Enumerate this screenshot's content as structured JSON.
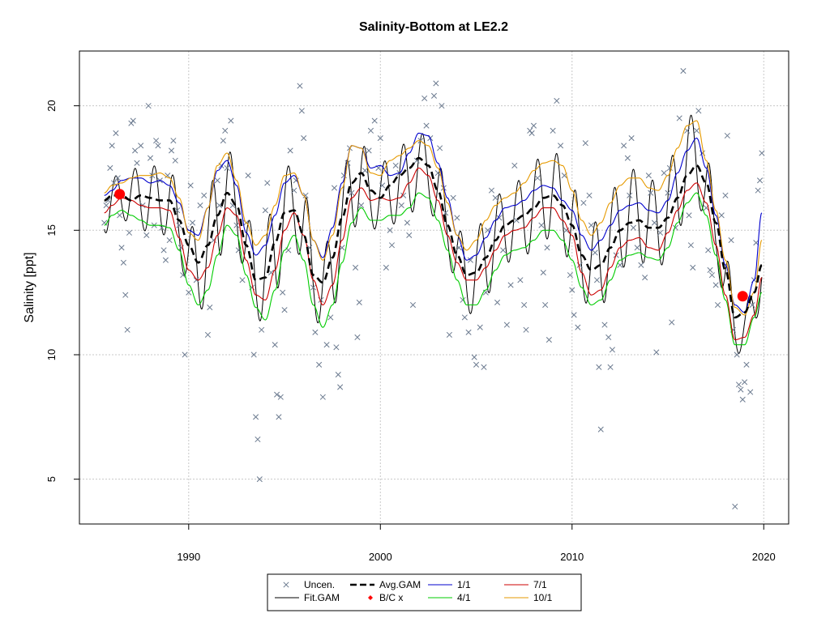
{
  "chart_data": {
    "type": "scatter",
    "title": "Salinity-Bottom at LE2.2",
    "xlabel": "",
    "ylabel": "Salinity [ppt]",
    "xlim": [
      1984.3,
      2021.3
    ],
    "ylim": [
      3.2,
      22.2
    ],
    "x_ticks": [
      1990,
      2000,
      2010,
      2020
    ],
    "x_tick_labels": [
      "1990",
      "2000",
      "2010",
      "2020"
    ],
    "y_ticks": [
      5,
      10,
      15,
      20
    ],
    "y_tick_labels": [
      "5",
      "10",
      "15",
      "20"
    ],
    "grid": true,
    "legend_position": "bottom",
    "legend": [
      {
        "label": "Uncen.",
        "style": "x-marker",
        "color": "#6b7a8f"
      },
      {
        "label": "Fit.GAM",
        "style": "line",
        "color": "#000000"
      },
      {
        "label": "Avg.GAM",
        "style": "dashed-line",
        "color": "#000000"
      },
      {
        "label": "B/C x",
        "style": "diamond-marker",
        "color": "#ff0000"
      },
      {
        "label": "1/1",
        "style": "line",
        "color": "#0000cd"
      },
      {
        "label": "4/1",
        "style": "line",
        "color": "#00cc00"
      },
      {
        "label": "7/1",
        "style": "line",
        "color": "#cc0000"
      },
      {
        "label": "10/1",
        "style": "line",
        "color": "#e69a00"
      }
    ],
    "observations": [
      [
        1985.6,
        15.3
      ],
      [
        1985.8,
        16.2
      ],
      [
        1985.9,
        17.5
      ],
      [
        1986.0,
        18.4
      ],
      [
        1986.1,
        16.9
      ],
      [
        1986.2,
        18.9
      ],
      [
        1986.3,
        17.1
      ],
      [
        1986.4,
        15.6
      ],
      [
        1986.5,
        14.3
      ],
      [
        1986.6,
        13.7
      ],
      [
        1986.7,
        12.4
      ],
      [
        1986.8,
        11.0
      ],
      [
        1986.9,
        14.9
      ],
      [
        1987.0,
        19.3
      ],
      [
        1987.1,
        19.4
      ],
      [
        1987.3,
        17.7
      ],
      [
        1987.5,
        18.4
      ],
      [
        1987.6,
        16.0
      ],
      [
        1987.8,
        14.8
      ],
      [
        1987.9,
        20.0
      ],
      [
        1988.0,
        17.9
      ],
      [
        1988.1,
        17.2
      ],
      [
        1988.2,
        15.2
      ],
      [
        1988.3,
        18.6
      ],
      [
        1988.4,
        18.4
      ],
      [
        1988.5,
        17.0
      ],
      [
        1988.6,
        15.1
      ],
      [
        1988.7,
        14.2
      ],
      [
        1988.8,
        13.8
      ],
      [
        1988.9,
        17.2
      ],
      [
        1989.1,
        18.2
      ],
      [
        1989.2,
        18.6
      ],
      [
        1989.3,
        17.8
      ],
      [
        1989.4,
        15.8
      ],
      [
        1989.5,
        15.2
      ],
      [
        1989.6,
        14.3
      ],
      [
        1989.7,
        13.2
      ],
      [
        1989.8,
        10.0
      ],
      [
        1990.0,
        12.5
      ],
      [
        1990.1,
        16.8
      ],
      [
        1990.2,
        15.3
      ],
      [
        1990.4,
        13.0
      ],
      [
        1990.6,
        16.0
      ],
      [
        1990.8,
        16.4
      ],
      [
        1991.0,
        10.8
      ],
      [
        1991.1,
        11.9
      ],
      [
        1991.3,
        14.6
      ],
      [
        1991.5,
        17.0
      ],
      [
        1991.6,
        16.0
      ],
      [
        1991.8,
        18.6
      ],
      [
        1991.9,
        19.0
      ],
      [
        1992.0,
        17.5
      ],
      [
        1992.2,
        19.4
      ],
      [
        1992.3,
        16.0
      ],
      [
        1992.5,
        15.2
      ],
      [
        1992.6,
        14.2
      ],
      [
        1992.8,
        13.0
      ],
      [
        1993.0,
        15.3
      ],
      [
        1993.1,
        17.2
      ],
      [
        1993.3,
        12.7
      ],
      [
        1993.4,
        10.0
      ],
      [
        1993.5,
        7.5
      ],
      [
        1993.6,
        6.6
      ],
      [
        1993.7,
        5.0
      ],
      [
        1993.8,
        11.0
      ],
      [
        1994.0,
        15.8
      ],
      [
        1994.1,
        16.9
      ],
      [
        1994.3,
        13.3
      ],
      [
        1994.5,
        10.4
      ],
      [
        1994.6,
        8.4
      ],
      [
        1994.7,
        7.5
      ],
      [
        1994.8,
        8.3
      ],
      [
        1995.0,
        11.8
      ],
      [
        1995.2,
        14.2
      ],
      [
        1995.3,
        18.2
      ],
      [
        1995.5,
        16.6
      ],
      [
        1995.6,
        17.0
      ],
      [
        1995.8,
        20.8
      ],
      [
        1995.9,
        19.8
      ],
      [
        1996.0,
        18.7
      ],
      [
        1996.1,
        16.4
      ],
      [
        1996.3,
        14.3
      ],
      [
        1996.5,
        12.7
      ],
      [
        1996.6,
        10.9
      ],
      [
        1996.8,
        9.6
      ],
      [
        1997.0,
        8.3
      ],
      [
        1997.2,
        10.4
      ],
      [
        1997.4,
        11.5
      ],
      [
        1997.6,
        16.7
      ],
      [
        1997.7,
        10.3
      ],
      [
        1997.8,
        9.2
      ],
      [
        1997.9,
        8.7
      ],
      [
        1998.0,
        14.3
      ],
      [
        1998.1,
        17.2
      ],
      [
        1998.3,
        17.7
      ],
      [
        1998.4,
        18.3
      ],
      [
        1998.5,
        16.5
      ],
      [
        1998.7,
        13.5
      ],
      [
        1998.8,
        10.7
      ],
      [
        1999.0,
        16.0
      ],
      [
        1999.2,
        17.4
      ],
      [
        1999.4,
        18.2
      ],
      [
        1999.5,
        19.0
      ],
      [
        1999.7,
        19.4
      ],
      [
        1999.9,
        17.5
      ],
      [
        2000.0,
        18.7
      ],
      [
        2000.1,
        16.8
      ],
      [
        2000.3,
        13.5
      ],
      [
        2000.5,
        15.0
      ],
      [
        2000.6,
        14.4
      ],
      [
        2000.8,
        17.6
      ],
      [
        2001.0,
        17.3
      ],
      [
        2001.2,
        16.4
      ],
      [
        2001.4,
        15.3
      ],
      [
        2001.5,
        14.8
      ],
      [
        2001.7,
        12.0
      ],
      [
        2001.9,
        17.8
      ],
      [
        2002.1,
        18.6
      ],
      [
        2002.3,
        20.3
      ],
      [
        2002.4,
        19.2
      ],
      [
        2002.6,
        18.7
      ],
      [
        2002.8,
        20.4
      ],
      [
        2002.9,
        20.9
      ],
      [
        2003.0,
        17.3
      ],
      [
        2003.1,
        18.3
      ],
      [
        2003.3,
        16.7
      ],
      [
        2003.4,
        15.7
      ],
      [
        2003.6,
        10.8
      ],
      [
        2003.8,
        16.3
      ],
      [
        2004.0,
        15.5
      ],
      [
        2004.1,
        14.3
      ],
      [
        2004.3,
        12.2
      ],
      [
        2004.4,
        11.5
      ],
      [
        2004.6,
        10.9
      ],
      [
        2004.7,
        13.8
      ],
      [
        2004.9,
        9.9
      ],
      [
        2005.0,
        9.6
      ],
      [
        2005.2,
        11.1
      ],
      [
        2005.4,
        9.5
      ],
      [
        2005.5,
        12.5
      ],
      [
        2005.6,
        15.0
      ],
      [
        2005.8,
        16.6
      ],
      [
        2006.0,
        16.3
      ],
      [
        2006.2,
        15.5
      ],
      [
        2006.4,
        14.2
      ],
      [
        2006.6,
        11.2
      ],
      [
        2006.8,
        12.8
      ],
      [
        2007.0,
        17.6
      ],
      [
        2007.1,
        15.4
      ],
      [
        2007.3,
        13.0
      ],
      [
        2007.5,
        12.0
      ],
      [
        2007.6,
        11.0
      ],
      [
        2007.8,
        19.0
      ],
      [
        2007.9,
        18.9
      ],
      [
        2008.0,
        19.2
      ],
      [
        2008.2,
        17.1
      ],
      [
        2008.4,
        15.2
      ],
      [
        2008.5,
        13.3
      ],
      [
        2008.6,
        12.0
      ],
      [
        2008.8,
        10.6
      ],
      [
        2009.0,
        19.0
      ],
      [
        2009.2,
        20.2
      ],
      [
        2009.4,
        18.4
      ],
      [
        2009.6,
        17.2
      ],
      [
        2009.7,
        15.0
      ],
      [
        2009.9,
        13.2
      ],
      [
        2010.0,
        12.6
      ],
      [
        2010.1,
        11.6
      ],
      [
        2010.3,
        11.1
      ],
      [
        2010.4,
        13.6
      ],
      [
        2010.6,
        16.1
      ],
      [
        2010.7,
        18.5
      ],
      [
        2010.9,
        16.4
      ],
      [
        2011.0,
        15.2
      ],
      [
        2011.2,
        14.1
      ],
      [
        2011.3,
        13.0
      ],
      [
        2011.4,
        9.5
      ],
      [
        2011.5,
        7.0
      ],
      [
        2011.7,
        11.2
      ],
      [
        2011.9,
        10.7
      ],
      [
        2012.0,
        9.5
      ],
      [
        2012.1,
        10.2
      ],
      [
        2012.3,
        14.0
      ],
      [
        2012.5,
        13.6
      ],
      [
        2012.7,
        18.4
      ],
      [
        2012.9,
        17.9
      ],
      [
        2013.0,
        16.4
      ],
      [
        2013.2,
        15.1
      ],
      [
        2013.4,
        14.3
      ],
      [
        2013.6,
        13.6
      ],
      [
        2013.8,
        13.1
      ],
      [
        2014.0,
        17.2
      ],
      [
        2014.1,
        16.5
      ],
      [
        2014.3,
        15.3
      ],
      [
        2014.4,
        10.1
      ],
      [
        2014.6,
        14.9
      ],
      [
        2014.8,
        17.3
      ],
      [
        2015.0,
        16.5
      ],
      [
        2015.2,
        11.3
      ],
      [
        2015.4,
        15.1
      ],
      [
        2015.6,
        19.5
      ],
      [
        2015.8,
        21.4
      ],
      [
        2016.0,
        19.0
      ],
      [
        2016.1,
        15.6
      ],
      [
        2016.2,
        14.4
      ],
      [
        2016.3,
        13.5
      ],
      [
        2016.5,
        19.0
      ],
      [
        2016.6,
        19.8
      ],
      [
        2016.8,
        18.1
      ],
      [
        2017.0,
        15.9
      ],
      [
        2017.1,
        14.2
      ],
      [
        2017.3,
        13.2
      ],
      [
        2017.5,
        12.8
      ],
      [
        2017.6,
        12.0
      ],
      [
        2017.8,
        15.6
      ],
      [
        2018.0,
        16.4
      ],
      [
        2018.1,
        18.8
      ],
      [
        2018.3,
        14.6
      ],
      [
        2018.4,
        11.0
      ],
      [
        2018.5,
        3.9
      ],
      [
        2018.6,
        10.0
      ],
      [
        2018.7,
        8.8
      ],
      [
        2018.8,
        8.6
      ],
      [
        2018.9,
        8.2
      ],
      [
        2019.0,
        8.9
      ],
      [
        2019.1,
        9.6
      ],
      [
        2019.3,
        8.5
      ],
      [
        2019.5,
        13.0
      ],
      [
        2019.6,
        14.5
      ],
      [
        2019.7,
        16.6
      ],
      [
        2019.8,
        17.0
      ],
      [
        2019.9,
        18.1
      ],
      [
        1985.7,
        16.0
      ],
      [
        1987.2,
        18.2
      ],
      [
        1989.0,
        14.6
      ],
      [
        1991.7,
        17.6
      ],
      [
        1994.9,
        12.5
      ],
      [
        1996.9,
        12.2
      ],
      [
        1998.9,
        12.1
      ],
      [
        2001.1,
        16.0
      ],
      [
        2003.2,
        20.0
      ],
      [
        2006.1,
        12.1
      ],
      [
        2008.7,
        14.3
      ],
      [
        2013.1,
        18.7
      ],
      [
        2015.1,
        17.5
      ],
      [
        2017.2,
        13.4
      ],
      [
        2019.4,
        12.0
      ]
    ],
    "fit_gam_info": "seasonal fitted GAM oscillating around the average GAM",
    "avg_gam": {
      "x": [
        1985.6,
        1986,
        1986.5,
        1987,
        1987.5,
        1988,
        1988.5,
        1989,
        1989.5,
        1990,
        1990.5,
        1991,
        1991.5,
        1992,
        1992.5,
        1993,
        1993.5,
        1994,
        1994.5,
        1995,
        1995.5,
        1996,
        1996.5,
        1997,
        1997.5,
        1998,
        1998.5,
        1999,
        1999.5,
        2000,
        2000.5,
        2001,
        2001.5,
        2002,
        2002.5,
        2003,
        2003.5,
        2004,
        2004.5,
        2005,
        2005.5,
        2006,
        2006.5,
        2007,
        2007.5,
        2008,
        2008.5,
        2009,
        2009.5,
        2010,
        2010.5,
        2011,
        2011.5,
        2012,
        2012.5,
        2013,
        2013.5,
        2014,
        2014.5,
        2015,
        2015.5,
        2016,
        2016.5,
        2017,
        2017.5,
        2018,
        2018.5,
        2019,
        2019.5,
        2019.9
      ],
      "y": [
        16.2,
        16.4,
        16.4,
        16.2,
        16.4,
        16.3,
        16.2,
        16.2,
        15.4,
        14.4,
        13.7,
        14.4,
        15.6,
        16.5,
        16.0,
        14.4,
        13.0,
        13.1,
        14.5,
        15.7,
        15.8,
        14.8,
        13.2,
        12.9,
        13.9,
        15.5,
        16.9,
        17.3,
        16.6,
        16.3,
        16.8,
        17.2,
        17.5,
        17.9,
        17.6,
        16.6,
        15.2,
        14.0,
        13.2,
        13.3,
        13.9,
        14.6,
        15.2,
        15.4,
        15.6,
        15.9,
        16.3,
        16.4,
        16.0,
        15.2,
        14.0,
        13.4,
        13.6,
        14.3,
        15.0,
        15.3,
        15.4,
        15.1,
        15.1,
        15.5,
        16.3,
        17.2,
        17.6,
        16.9,
        15.3,
        13.4,
        11.5,
        11.7,
        12.5,
        13.6
      ]
    },
    "series": [
      {
        "name": "1/1",
        "color": "#0000cd",
        "y": [
          16.4,
          16.6,
          17.0,
          17.1,
          17.1,
          16.9,
          17.0,
          16.8,
          16.1,
          15.0,
          14.8,
          15.9,
          17.4,
          17.8,
          16.8,
          14.9,
          14.0,
          14.4,
          15.6,
          16.9,
          17.2,
          16.4,
          14.6,
          13.9,
          15.1,
          16.9,
          18.4,
          18.3,
          17.5,
          17.6,
          17.2,
          17.3,
          18.1,
          18.9,
          18.8,
          17.7,
          16.3,
          14.8,
          13.8,
          14.0,
          14.7,
          15.4,
          15.9,
          16.0,
          16.2,
          16.6,
          16.8,
          16.7,
          16.2,
          15.8,
          14.8,
          14.2,
          14.6,
          15.2,
          15.8,
          16.0,
          16.1,
          15.8,
          15.7,
          16.2,
          17.3,
          18.2,
          18.7,
          17.5,
          15.6,
          13.6,
          12.0,
          11.7,
          13.0,
          15.7
        ]
      },
      {
        "name": "4/1",
        "color": "#00cc00",
        "y": [
          15.2,
          15.6,
          15.8,
          15.6,
          15.4,
          15.2,
          15.2,
          15.1,
          14.2,
          12.8,
          12.0,
          12.6,
          14.0,
          15.2,
          14.8,
          13.2,
          11.9,
          11.4,
          12.6,
          14.2,
          14.8,
          13.8,
          12.0,
          11.1,
          12.0,
          13.7,
          15.3,
          15.9,
          15.4,
          15.4,
          15.6,
          15.6,
          15.9,
          16.5,
          16.3,
          15.4,
          14.2,
          13.0,
          12.0,
          12.0,
          12.6,
          13.4,
          14.0,
          14.2,
          14.3,
          14.6,
          15.0,
          15.0,
          14.6,
          13.8,
          12.7,
          12.0,
          12.2,
          13.0,
          13.8,
          14.0,
          14.1,
          13.9,
          13.8,
          14.3,
          15.3,
          16.1,
          16.5,
          15.6,
          14.0,
          12.2,
          10.4,
          10.4,
          11.5,
          12.5
        ]
      },
      {
        "name": "7/1",
        "color": "#cc0000",
        "y": [
          15.7,
          16.0,
          16.3,
          16.2,
          16.0,
          15.9,
          15.9,
          15.8,
          14.7,
          13.4,
          13.0,
          13.5,
          14.8,
          15.9,
          15.6,
          13.8,
          12.4,
          12.2,
          13.4,
          15.0,
          15.7,
          14.8,
          13.0,
          12.0,
          12.8,
          14.6,
          16.3,
          16.7,
          16.2,
          16.3,
          16.2,
          16.3,
          16.9,
          17.5,
          17.2,
          16.2,
          14.8,
          13.7,
          13.0,
          13.0,
          13.5,
          14.2,
          14.8,
          15.0,
          15.1,
          15.5,
          15.9,
          15.9,
          15.4,
          14.8,
          13.3,
          12.4,
          12.6,
          13.5,
          14.3,
          14.6,
          14.7,
          14.3,
          14.2,
          14.9,
          15.8,
          16.6,
          16.9,
          16.1,
          14.4,
          12.4,
          10.6,
          10.7,
          11.6,
          13.1
        ]
      },
      {
        "name": "10/1",
        "color": "#e69a00",
        "y": [
          16.5,
          16.8,
          16.9,
          17.1,
          17.2,
          17.2,
          17.3,
          17.1,
          16.3,
          14.9,
          14.6,
          15.9,
          17.6,
          18.1,
          17.0,
          15.3,
          14.4,
          14.8,
          16.0,
          17.2,
          17.3,
          16.4,
          14.6,
          13.8,
          14.8,
          16.7,
          18.4,
          18.3,
          17.3,
          17.2,
          17.8,
          18.0,
          18.3,
          18.6,
          18.4,
          17.5,
          16.1,
          14.8,
          14.2,
          14.6,
          15.4,
          16.0,
          16.3,
          16.5,
          16.9,
          17.4,
          17.7,
          17.8,
          17.6,
          16.6,
          15.4,
          14.8,
          15.3,
          16.1,
          16.8,
          17.1,
          17.1,
          16.7,
          16.6,
          17.2,
          18.3,
          19.2,
          19.4,
          17.8,
          15.8,
          13.8,
          11.9,
          11.6,
          12.5,
          14.6
        ]
      }
    ],
    "bc_points": [
      {
        "x": 1986.4,
        "y": 16.45
      },
      {
        "x": 2018.9,
        "y": 12.35
      }
    ]
  }
}
